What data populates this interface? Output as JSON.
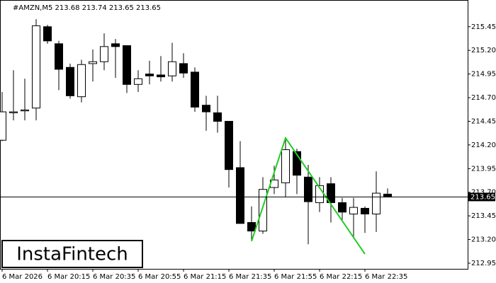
{
  "chart_data": {
    "type": "candlestick",
    "title": "#AMZN,M5  213.68 213.74 213.65 213.65",
    "watermark": "InstaFintech",
    "categories": [
      "6 Mar 2026",
      null,
      null,
      null,
      "6 Mar 20:15",
      null,
      null,
      null,
      "6 Mar 20:35",
      null,
      null,
      null,
      "6 Mar 20:55",
      null,
      null,
      null,
      "6 Mar 21:15",
      null,
      null,
      null,
      "6 Mar 21:35",
      null,
      null,
      null,
      "6 Mar 21:55",
      null,
      null,
      null,
      "6 Mar 22:15",
      null,
      null,
      null,
      "6 Mar 22:35",
      null,
      null
    ],
    "open": [
      214.25,
      214.54,
      214.56,
      214.59,
      215.45,
      215.27,
      215.02,
      214.71,
      215.06,
      215.08,
      215.27,
      215.25,
      214.84,
      214.95,
      214.94,
      214.93,
      215.06,
      214.97,
      214.62,
      214.54,
      214.45,
      213.96,
      213.38,
      213.29,
      213.75,
      213.8,
      214.13,
      213.86,
      213.59,
      213.79,
      213.59,
      213.47,
      213.53,
      213.47,
      213.68
    ],
    "high": [
      214.76,
      214.99,
      214.9,
      215.53,
      215.47,
      215.3,
      215.06,
      215.1,
      215.21,
      215.38,
      215.32,
      215.25,
      214.99,
      215.09,
      215.14,
      215.28,
      215.17,
      215.02,
      214.72,
      214.72,
      214.45,
      214.24,
      213.55,
      213.86,
      213.98,
      214.27,
      214.16,
      213.99,
      213.86,
      213.86,
      213.64,
      213.64,
      213.55,
      213.92,
      213.74
    ],
    "low": [
      214.24,
      214.46,
      214.46,
      214.46,
      215.27,
      214.78,
      214.69,
      214.65,
      214.87,
      214.99,
      214.91,
      214.75,
      214.76,
      214.84,
      214.87,
      214.87,
      214.91,
      214.55,
      214.35,
      214.33,
      213.75,
      213.37,
      213.19,
      213.26,
      213.68,
      213.65,
      213.68,
      213.15,
      213.49,
      213.38,
      213.41,
      213.23,
      213.27,
      213.28,
      213.65
    ],
    "close": [
      214.55,
      214.55,
      214.57,
      215.46,
      215.3,
      215.0,
      214.72,
      215.05,
      215.08,
      215.24,
      215.24,
      214.84,
      214.9,
      214.93,
      214.92,
      215.08,
      214.96,
      214.6,
      214.55,
      214.45,
      213.94,
      213.37,
      213.29,
      213.73,
      213.83,
      214.15,
      213.88,
      213.6,
      213.77,
      213.59,
      213.49,
      213.54,
      213.47,
      213.69,
      213.65
    ],
    "up_color": "#ffffff",
    "down_color": "#000000",
    "pattern_color": "#22cc22",
    "ylim": [
      212.89,
      215.71
    ],
    "yticks": [
      212.95,
      {
        "value": 213.2,
        "label": "213.20"
      },
      213.45,
      {
        "value": 213.7,
        "label": "213.70"
      },
      213.95,
      {
        "value": 214.2,
        "label": "214.20"
      },
      214.45,
      {
        "value": 214.7,
        "label": "214.70"
      },
      214.95,
      {
        "value": 215.2,
        "label": "215.20"
      },
      215.45
    ],
    "last_price": 213.65,
    "grid": false
  }
}
